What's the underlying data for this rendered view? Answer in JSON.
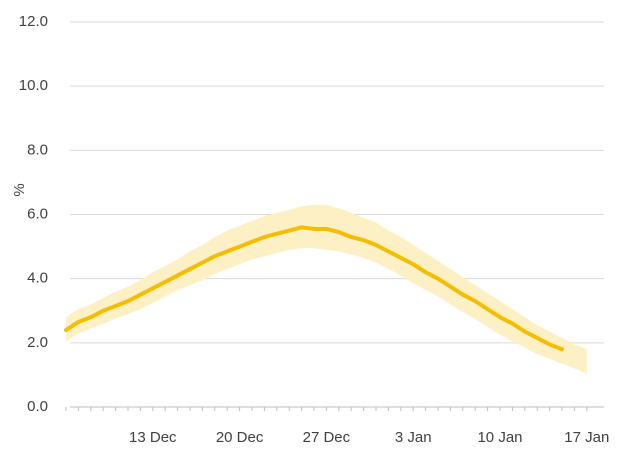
{
  "chart_data": {
    "type": "line",
    "y_label": "%",
    "categories": [
      null,
      null,
      null,
      null,
      null,
      null,
      null,
      "13 Dec",
      null,
      null,
      null,
      null,
      null,
      null,
      "20 Dec",
      null,
      null,
      null,
      null,
      null,
      null,
      "27 Dec",
      null,
      null,
      null,
      null,
      null,
      null,
      "3 Jan",
      null,
      null,
      null,
      null,
      null,
      null,
      "10 Jan",
      null,
      null,
      null,
      null,
      null,
      null,
      "17 Jan"
    ],
    "series": [
      {
        "color": "#f5bd00",
        "values": [
          2.4,
          2.65,
          2.8,
          3.0,
          3.15,
          3.3,
          3.5,
          3.7,
          3.9,
          4.1,
          4.3,
          4.5,
          4.7,
          4.85,
          5.0,
          5.15,
          5.3,
          5.4,
          5.5,
          5.6,
          5.55,
          5.55,
          5.45,
          5.3,
          5.2,
          5.05,
          4.85,
          4.65,
          4.45,
          4.2,
          4.0,
          3.75,
          3.5,
          3.3,
          3.05,
          2.8,
          2.6,
          2.35,
          2.15,
          1.95,
          1.8,
          null,
          null
        ]
      }
    ],
    "band": {
      "color": "#fdf0c4",
      "upper": [
        2.8,
        3.05,
        3.2,
        3.4,
        3.6,
        3.75,
        3.95,
        4.2,
        4.4,
        4.6,
        4.85,
        5.05,
        5.3,
        5.5,
        5.65,
        5.8,
        5.95,
        6.05,
        6.15,
        6.25,
        6.3,
        6.3,
        6.2,
        6.05,
        5.9,
        5.75,
        5.5,
        5.3,
        5.05,
        4.8,
        4.55,
        4.3,
        4.05,
        3.8,
        3.55,
        3.3,
        3.05,
        2.8,
        2.55,
        2.35,
        2.15,
        1.95,
        1.8
      ],
      "lower": [
        2.05,
        2.3,
        2.45,
        2.6,
        2.75,
        2.9,
        3.05,
        3.25,
        3.45,
        3.65,
        3.8,
        3.95,
        4.15,
        4.3,
        4.45,
        4.6,
        4.7,
        4.8,
        4.9,
        4.95,
        4.95,
        4.9,
        4.85,
        4.75,
        4.65,
        4.5,
        4.3,
        4.1,
        3.85,
        3.65,
        3.45,
        3.2,
        2.95,
        2.75,
        2.5,
        2.25,
        2.05,
        1.85,
        1.65,
        1.5,
        1.35,
        1.2,
        1.05
      ]
    },
    "ylim": [
      0,
      12
    ],
    "yticks": [
      {
        "value": 0,
        "label": "0.0"
      },
      {
        "value": 2,
        "label": "2.0"
      },
      {
        "value": 4,
        "label": "4.0"
      },
      {
        "value": 6,
        "label": "6.0"
      },
      {
        "value": 8,
        "label": "8.0"
      },
      {
        "value": 10,
        "label": "10.0"
      },
      {
        "value": 12,
        "label": "12.0"
      }
    ],
    "grid": true
  }
}
